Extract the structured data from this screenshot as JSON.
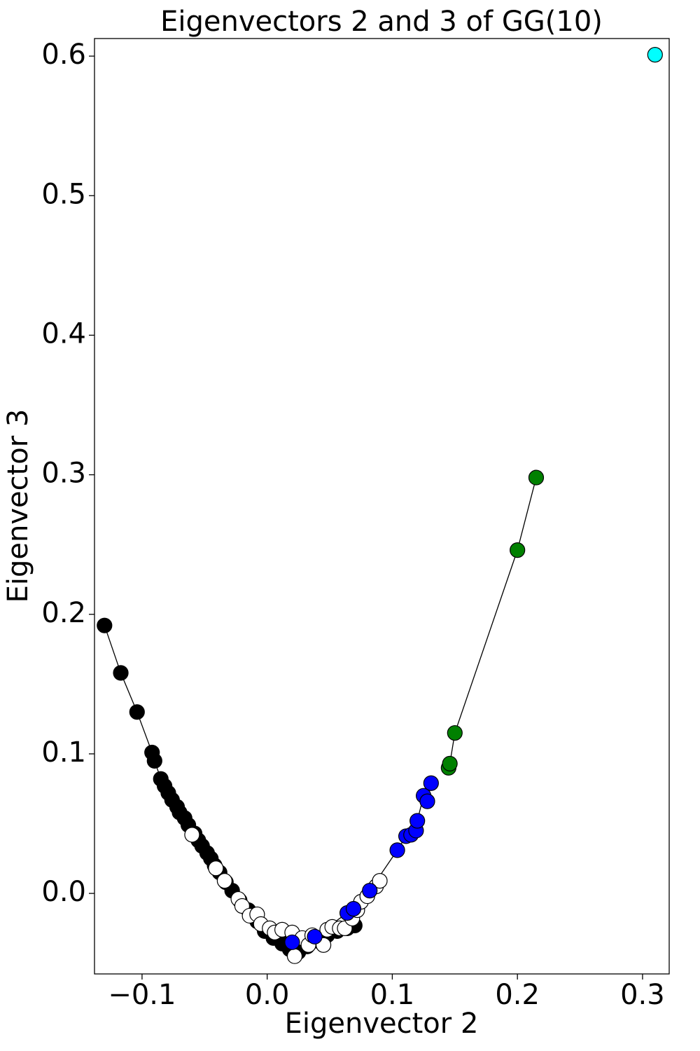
{
  "chart_data": {
    "type": "scatter",
    "title": "Eigenvectors 2 and 3 of GG(10)",
    "x_label": "Eigenvector 2",
    "y_label": "Eigenvector 3",
    "xlim": [
      -0.138,
      0.3213
    ],
    "ylim": [
      -0.0577,
      0.6126
    ],
    "xticks": [
      {
        "value": -0.1,
        "label": "−0.1"
      },
      {
        "value": 0,
        "label": "0.0"
      },
      0.1,
      0.2,
      0.3
    ],
    "yticks": [
      {
        "value": 0,
        "label": "0.0"
      },
      0.1,
      0.2,
      0.3,
      0.4,
      0.5,
      0.6
    ],
    "connect": true,
    "edge_color": "#000000",
    "marker_edge": "#000000",
    "series": [
      {
        "color": "#000000",
        "x": [
          -0.13,
          -0.117,
          -0.104,
          -0.092,
          -0.09,
          -0.085,
          -0.082,
          -0.079,
          -0.076,
          -0.072,
          -0.07,
          -0.066,
          -0.063,
          -0.058,
          -0.055,
          -0.052,
          -0.048,
          -0.045,
          -0.042,
          -0.038,
          -0.033,
          -0.028,
          -0.022,
          -0.015,
          -0.008,
          -0.002,
          0.005,
          0.012,
          0.018,
          0.025,
          0.032,
          0.04,
          0.048,
          0.056,
          0.064,
          0.07
        ],
        "values": [
          0.192,
          0.158,
          0.13,
          0.101,
          0.095,
          0.082,
          0.077,
          0.072,
          0.067,
          0.062,
          0.058,
          0.054,
          0.049,
          0.043,
          0.038,
          0.034,
          0.029,
          0.025,
          0.02,
          0.015,
          0.008,
          0.002,
          -0.005,
          -0.012,
          -0.02,
          -0.027,
          -0.032,
          -0.036,
          -0.04,
          -0.042,
          -0.038,
          -0.034,
          -0.03,
          -0.027,
          -0.025,
          -0.023
        ]
      },
      {
        "color": "#ffffff",
        "x": [
          -0.06,
          -0.041,
          -0.034,
          -0.023,
          -0.02,
          -0.014,
          -0.008,
          -0.005,
          0.002,
          0.006,
          0.012,
          0.02,
          0.022,
          0.028,
          0.033,
          0.036,
          0.045,
          0.048,
          0.052,
          0.058,
          0.062,
          0.068,
          0.072,
          0.075,
          0.08,
          0.087,
          0.09
        ],
        "values": [
          0.042,
          0.018,
          0.009,
          -0.004,
          -0.009,
          -0.016,
          -0.015,
          -0.022,
          -0.025,
          -0.028,
          -0.026,
          -0.028,
          -0.045,
          -0.032,
          -0.037,
          -0.03,
          -0.037,
          -0.026,
          -0.024,
          -0.025,
          -0.025,
          -0.018,
          -0.012,
          -0.006,
          -0.002,
          0.005,
          0.009
        ]
      },
      {
        "color": "#0000ff",
        "x": [
          0.02,
          0.038,
          0.064,
          0.069,
          0.082,
          0.104,
          0.111,
          0.115,
          0.119,
          0.12,
          0.125,
          0.128,
          0.131
        ],
        "values": [
          -0.035,
          -0.031,
          -0.014,
          -0.011,
          0.002,
          0.031,
          0.041,
          0.042,
          0.045,
          0.052,
          0.07,
          0.066,
          0.079
        ]
      },
      {
        "color": "#008000",
        "x": [
          0.145,
          0.146,
          0.15,
          0.2,
          0.215
        ],
        "values": [
          0.09,
          0.093,
          0.115,
          0.246,
          0.298
        ]
      },
      {
        "color": "#00ffff",
        "x": [
          0.31
        ],
        "values": [
          0.601
        ]
      }
    ]
  }
}
